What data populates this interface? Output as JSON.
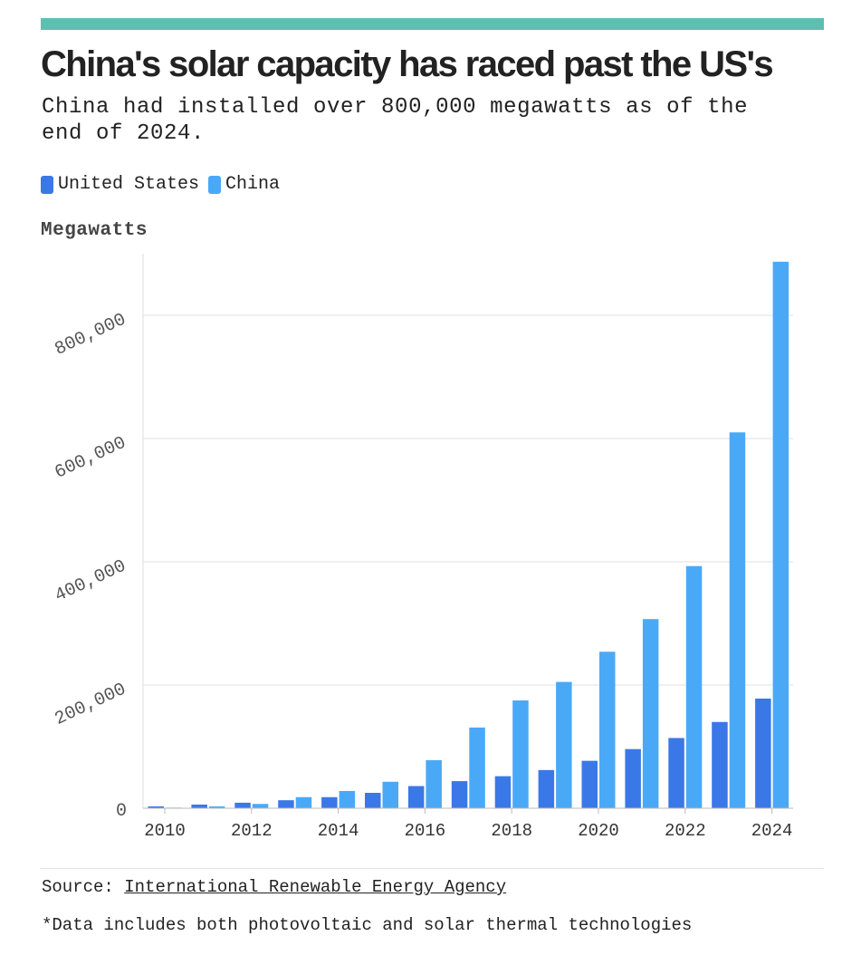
{
  "header": {
    "title": "China's solar capacity has raced past the US's",
    "subtitle": "China had installed over 800,000 megawatts as of the end of 2024."
  },
  "legend": [
    {
      "label": "United States",
      "color": "#3b78e7"
    },
    {
      "label": "China",
      "color": "#4aa9f7"
    }
  ],
  "colors": {
    "accent_bar": "#5dbfb1",
    "gridline": "#e6e6e6"
  },
  "footer": {
    "source_prefix": "Source:",
    "source_name": "International Renewable Energy Agency",
    "note": "*Data includes both photovoltaic and solar thermal technologies"
  },
  "chart_data": {
    "type": "bar",
    "ylabel": "Megawatts",
    "categories": [
      "2010",
      "2011",
      "2012",
      "2013",
      "2014",
      "2015",
      "2016",
      "2017",
      "2018",
      "2019",
      "2020",
      "2021",
      "2022",
      "2023",
      "2024"
    ],
    "x_tick_labels": [
      "2010",
      "2012",
      "2014",
      "2016",
      "2018",
      "2020",
      "2022",
      "2024"
    ],
    "series": [
      {
        "name": "United States",
        "color": "#3b78e7",
        "values": [
          3000,
          6000,
          9000,
          13000,
          18000,
          25000,
          36000,
          44000,
          52000,
          62000,
          77000,
          96000,
          114000,
          140000,
          178000
        ]
      },
      {
        "name": "China",
        "color": "#4aa9f7",
        "values": [
          1000,
          3000,
          7000,
          18000,
          28000,
          43000,
          78000,
          131000,
          175000,
          205000,
          254000,
          307000,
          393000,
          610000,
          887000
        ]
      }
    ],
    "y_ticks": [
      0,
      200000,
      400000,
      600000,
      800000
    ],
    "y_tick_labels": [
      "0",
      "200,000",
      "400,000",
      "600,000",
      "800,000"
    ],
    "ylim": [
      0,
      900000
    ],
    "grid": true,
    "legend_position": "top-left"
  }
}
